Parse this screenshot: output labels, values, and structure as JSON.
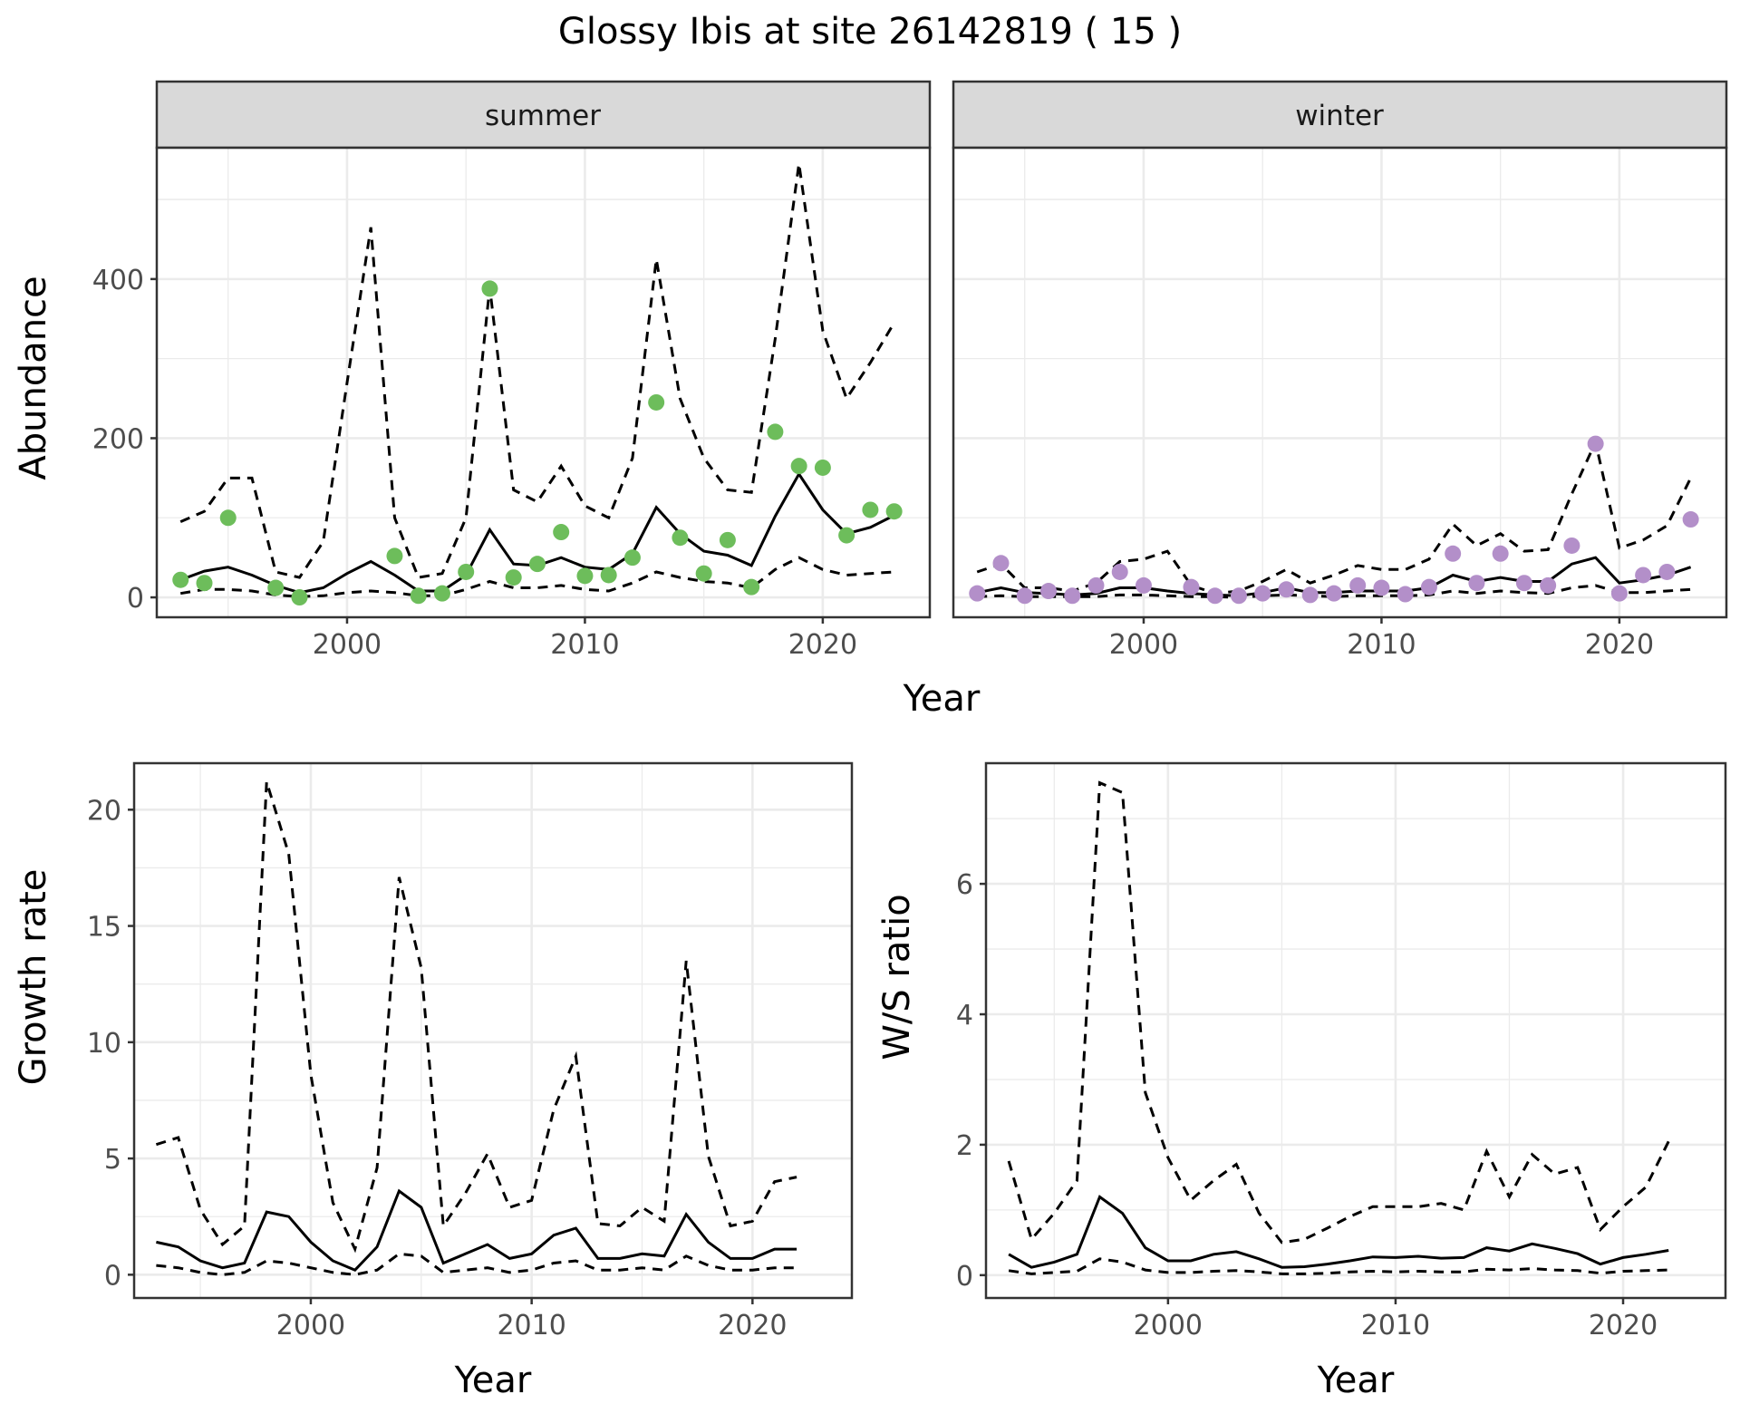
{
  "figure": {
    "title": "Glossy Ibis at site 26142819 ( 15 )",
    "colors": {
      "summer_points": "#6dbd5b",
      "winter_points": "#b38fc9",
      "line": "#000000",
      "grid": "#ebebeb",
      "strip_bg": "#d9d9d9",
      "panel_border": "#333333"
    }
  },
  "chart_data": [
    {
      "type": "line",
      "panel": "summer",
      "strip_label": "summer",
      "xlabel": "Year",
      "ylabel": "Abundance",
      "x_ticks": [
        2000,
        2010,
        2020
      ],
      "y_ticks": [
        0,
        200,
        400
      ],
      "xlim": [
        1992,
        2024.5
      ],
      "ylim": [
        -25,
        565
      ],
      "grid": true,
      "x": [
        1993,
        1994,
        1995,
        1996,
        1997,
        1998,
        1999,
        2000,
        2001,
        2002,
        2003,
        2004,
        2005,
        2006,
        2007,
        2008,
        2009,
        2010,
        2011,
        2012,
        2013,
        2014,
        2015,
        2016,
        2017,
        2018,
        2019,
        2020,
        2021,
        2022,
        2023
      ],
      "series": [
        {
          "role": "estimate",
          "style": "solid",
          "values": [
            22,
            33,
            38,
            28,
            15,
            6,
            12,
            30,
            45,
            28,
            8,
            8,
            28,
            85,
            42,
            40,
            50,
            38,
            35,
            55,
            113,
            80,
            58,
            53,
            40,
            102,
            155,
            110,
            80,
            88,
            103
          ]
        },
        {
          "role": "upper",
          "style": "dashed",
          "values": [
            95,
            108,
            150,
            150,
            32,
            25,
            70,
            270,
            465,
            100,
            25,
            30,
            100,
            390,
            135,
            120,
            165,
            115,
            100,
            175,
            425,
            250,
            175,
            135,
            132,
            325,
            545,
            335,
            250,
            295,
            345
          ]
        },
        {
          "role": "lower",
          "style": "dashed",
          "values": [
            5,
            10,
            10,
            8,
            3,
            1,
            2,
            6,
            8,
            6,
            2,
            2,
            10,
            20,
            12,
            12,
            15,
            10,
            8,
            18,
            32,
            25,
            20,
            18,
            12,
            35,
            50,
            35,
            28,
            30,
            32
          ]
        }
      ],
      "points": {
        "x": [
          1993,
          1994,
          1995,
          1997,
          1998,
          2002,
          2003,
          2004,
          2005,
          2006,
          2007,
          2008,
          2009,
          2010,
          2011,
          2012,
          2013,
          2014,
          2015,
          2016,
          2017,
          2018,
          2019,
          2020,
          2021,
          2022,
          2023
        ],
        "values": [
          22,
          18,
          100,
          12,
          0,
          52,
          2,
          5,
          32,
          388,
          25,
          42,
          82,
          27,
          28,
          50,
          245,
          75,
          30,
          72,
          13,
          208,
          165,
          163,
          78,
          110,
          108
        ]
      }
    },
    {
      "type": "line",
      "panel": "winter",
      "strip_label": "winter",
      "xlabel": "Year",
      "ylabel": "",
      "x_ticks": [
        2000,
        2010,
        2020
      ],
      "y_ticks": [
        0,
        200,
        400
      ],
      "xlim": [
        1992,
        2024.5
      ],
      "ylim": [
        -25,
        565
      ],
      "grid": true,
      "x": [
        1993,
        1994,
        1995,
        1996,
        1997,
        1998,
        1999,
        2000,
        2001,
        2002,
        2003,
        2004,
        2005,
        2006,
        2007,
        2008,
        2009,
        2010,
        2011,
        2012,
        2013,
        2014,
        2015,
        2016,
        2017,
        2018,
        2019,
        2020,
        2021,
        2022,
        2023
      ],
      "series": [
        {
          "role": "estimate",
          "style": "solid",
          "values": [
            6,
            12,
            6,
            5,
            3,
            5,
            12,
            12,
            8,
            5,
            3,
            2,
            6,
            12,
            6,
            6,
            8,
            8,
            8,
            12,
            28,
            20,
            25,
            20,
            20,
            42,
            50,
            18,
            22,
            28,
            38
          ]
        },
        {
          "role": "upper",
          "style": "dashed",
          "values": [
            32,
            42,
            12,
            12,
            8,
            18,
            45,
            48,
            58,
            15,
            5,
            8,
            20,
            35,
            18,
            28,
            40,
            35,
            35,
            48,
            92,
            65,
            80,
            58,
            60,
            130,
            195,
            62,
            72,
            90,
            150
          ]
        },
        {
          "role": "lower",
          "style": "dashed",
          "values": [
            1,
            2,
            1,
            1,
            1,
            1,
            3,
            3,
            2,
            1,
            1,
            0,
            2,
            3,
            2,
            1,
            2,
            2,
            2,
            3,
            8,
            5,
            8,
            6,
            5,
            12,
            15,
            6,
            6,
            8,
            10
          ]
        }
      ],
      "points": {
        "x": [
          1993,
          1994,
          1995,
          1996,
          1997,
          1998,
          1999,
          2000,
          2002,
          2003,
          2004,
          2005,
          2006,
          2007,
          2008,
          2009,
          2010,
          2011,
          2012,
          2013,
          2014,
          2015,
          2016,
          2017,
          2018,
          2019,
          2020,
          2021,
          2022,
          2023
        ],
        "values": [
          5,
          43,
          2,
          8,
          2,
          15,
          32,
          15,
          13,
          2,
          2,
          5,
          10,
          3,
          5,
          15,
          12,
          4,
          13,
          55,
          18,
          55,
          18,
          15,
          65,
          193,
          5,
          28,
          32,
          98
        ]
      }
    },
    {
      "type": "line",
      "panel": "growth",
      "xlabel": "Year",
      "ylabel": "Growth rate",
      "x_ticks": [
        2000,
        2010,
        2020
      ],
      "y_ticks": [
        0,
        5,
        10,
        15,
        20
      ],
      "xlim": [
        1992,
        2024.5
      ],
      "ylim": [
        -1,
        22
      ],
      "grid": true,
      "x": [
        1993,
        1994,
        1995,
        1996,
        1997,
        1998,
        1999,
        2000,
        2001,
        2002,
        2003,
        2004,
        2005,
        2006,
        2007,
        2008,
        2009,
        2010,
        2011,
        2012,
        2013,
        2014,
        2015,
        2016,
        2017,
        2018,
        2019,
        2020,
        2021,
        2022
      ],
      "series": [
        {
          "role": "estimate",
          "style": "solid",
          "values": [
            1.4,
            1.2,
            0.6,
            0.3,
            0.5,
            2.7,
            2.5,
            1.4,
            0.6,
            0.2,
            1.2,
            3.6,
            2.9,
            0.5,
            0.9,
            1.3,
            0.7,
            0.9,
            1.7,
            2.0,
            0.7,
            0.7,
            0.9,
            0.8,
            2.6,
            1.4,
            0.7,
            0.7,
            1.1,
            1.1
          ]
        },
        {
          "role": "upper",
          "style": "dashed",
          "values": [
            5.6,
            5.9,
            2.8,
            1.3,
            2.1,
            21.2,
            18.1,
            8.6,
            3.1,
            1.1,
            4.6,
            17.1,
            13.2,
            2.1,
            3.5,
            5.2,
            2.9,
            3.2,
            7.1,
            9.4,
            2.2,
            2.1,
            2.9,
            2.3,
            13.5,
            5.1,
            2.1,
            2.3,
            4.0,
            4.2
          ]
        },
        {
          "role": "lower",
          "style": "dashed",
          "values": [
            0.4,
            0.3,
            0.1,
            0.0,
            0.1,
            0.6,
            0.5,
            0.3,
            0.1,
            0.0,
            0.2,
            0.9,
            0.8,
            0.1,
            0.2,
            0.3,
            0.1,
            0.2,
            0.5,
            0.6,
            0.2,
            0.2,
            0.3,
            0.2,
            0.8,
            0.4,
            0.2,
            0.2,
            0.3,
            0.3
          ]
        }
      ]
    },
    {
      "type": "line",
      "panel": "ratio",
      "xlabel": "Year",
      "ylabel": "W/S ratio",
      "x_ticks": [
        2000,
        2010,
        2020
      ],
      "y_ticks": [
        0,
        2,
        4,
        6
      ],
      "xlim": [
        1992,
        2024.5
      ],
      "ylim": [
        -0.35,
        7.85
      ],
      "grid": true,
      "x": [
        1993,
        1994,
        1995,
        1996,
        1997,
        1998,
        1999,
        2000,
        2001,
        2002,
        2003,
        2004,
        2005,
        2006,
        2007,
        2008,
        2009,
        2010,
        2011,
        2012,
        2013,
        2014,
        2015,
        2016,
        2017,
        2018,
        2019,
        2020,
        2021,
        2022
      ],
      "series": [
        {
          "role": "estimate",
          "style": "solid",
          "values": [
            0.32,
            0.12,
            0.2,
            0.32,
            1.2,
            0.95,
            0.42,
            0.22,
            0.22,
            0.32,
            0.36,
            0.25,
            0.12,
            0.13,
            0.17,
            0.22,
            0.28,
            0.27,
            0.29,
            0.26,
            0.27,
            0.42,
            0.37,
            0.48,
            0.41,
            0.33,
            0.17,
            0.27,
            0.32,
            0.38
          ]
        },
        {
          "role": "upper",
          "style": "dashed",
          "values": [
            1.75,
            0.55,
            0.95,
            1.45,
            7.55,
            7.4,
            2.8,
            1.8,
            1.15,
            1.45,
            1.7,
            0.95,
            0.5,
            0.55,
            0.72,
            0.9,
            1.05,
            1.05,
            1.05,
            1.1,
            1.0,
            1.9,
            1.2,
            1.85,
            1.55,
            1.65,
            0.7,
            1.05,
            1.35,
            2.05
          ]
        },
        {
          "role": "lower",
          "style": "dashed",
          "values": [
            0.07,
            0.02,
            0.04,
            0.06,
            0.25,
            0.2,
            0.08,
            0.04,
            0.04,
            0.06,
            0.07,
            0.05,
            0.02,
            0.02,
            0.03,
            0.05,
            0.06,
            0.05,
            0.06,
            0.05,
            0.05,
            0.09,
            0.08,
            0.1,
            0.08,
            0.07,
            0.03,
            0.06,
            0.07,
            0.08
          ]
        }
      ]
    }
  ]
}
